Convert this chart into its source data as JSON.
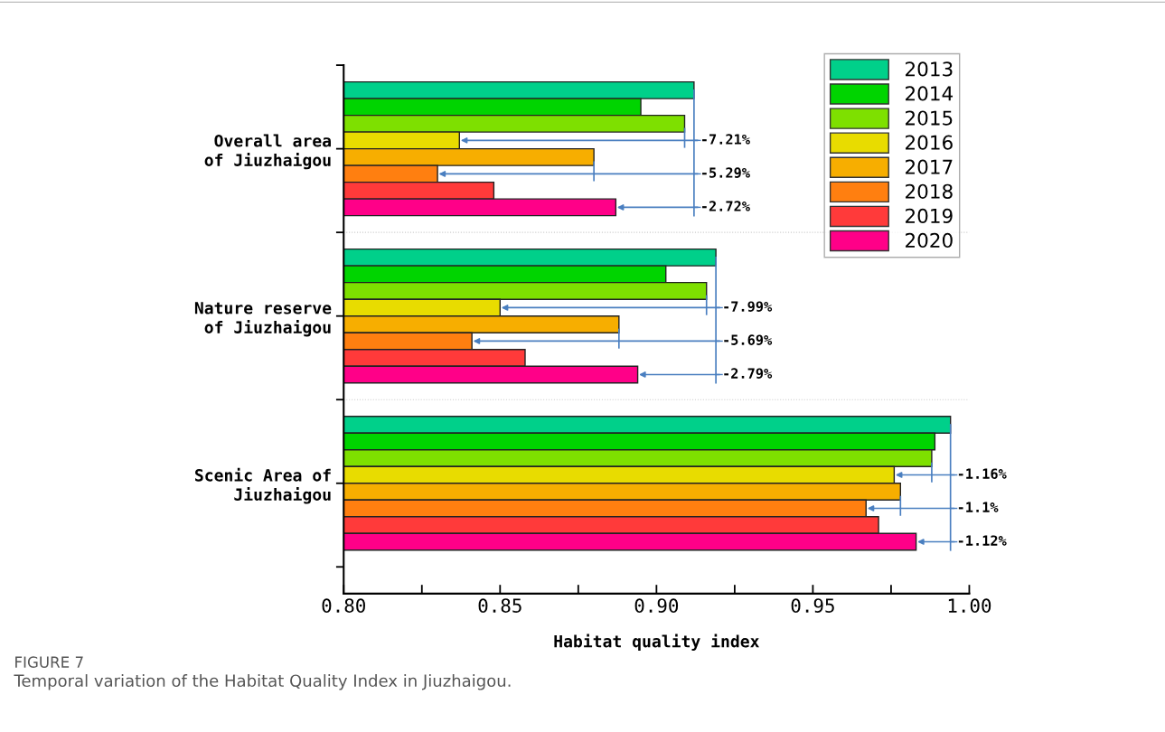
{
  "chart_data": {
    "type": "bar",
    "orientation": "horizontal",
    "categories": [
      "Overall area\nof Jiuzhaigou",
      "Nature reserve\nof Jiuzhaigou",
      "Scenic Area of\nJiuzhaigou"
    ],
    "xlabel": "Habitat quality index",
    "xlim": [
      0.8,
      1.0
    ],
    "xticks": [
      {
        "value": 0.8,
        "label": "0.80"
      },
      {
        "value": 0.85,
        "label": "0.85"
      },
      {
        "value": 0.9,
        "label": "0.90"
      },
      {
        "value": 0.95,
        "label": "0.95"
      },
      {
        "value": 1.0,
        "label": "1.00"
      }
    ],
    "series": [
      {
        "name": "2013",
        "color": "#00d08a",
        "values": [
          0.912,
          0.919,
          0.994
        ]
      },
      {
        "name": "2014",
        "color": "#00d400",
        "values": [
          0.895,
          0.903,
          0.989
        ]
      },
      {
        "name": "2015",
        "color": "#7ee000",
        "values": [
          0.909,
          0.916,
          0.988
        ]
      },
      {
        "name": "2016",
        "color": "#e8dc00",
        "values": [
          0.837,
          0.85,
          0.976
        ]
      },
      {
        "name": "2017",
        "color": "#f7ae00",
        "values": [
          0.88,
          0.888,
          0.978
        ]
      },
      {
        "name": "2018",
        "color": "#ff7f10",
        "values": [
          0.83,
          0.841,
          0.967
        ]
      },
      {
        "name": "2019",
        "color": "#ff3a3a",
        "values": [
          0.848,
          0.858,
          0.971
        ]
      },
      {
        "name": "2020",
        "color": "#ff0088",
        "values": [
          0.887,
          0.894,
          0.983
        ]
      }
    ],
    "legend": "top right",
    "annotations": [
      {
        "text": "-7.21%",
        "x": 0.837
      },
      {
        "text": "-5.29%",
        "x": 0.83
      },
      {
        "text": "-2.72%",
        "x": 0.887
      },
      {
        "text": "-7.99%",
        "x": 0.85
      },
      {
        "text": "-5.69%",
        "x": 0.841
      },
      {
        "text": "-2.79%",
        "x": 0.894
      },
      {
        "text": "-1.16%",
        "x": 0.976
      },
      {
        "text": "-1.1%",
        "x": 0.967
      },
      {
        "text": "-1.12%",
        "x": 0.983
      },
      "FIGURE 7",
      "Temporal variation of the Habitat Quality Index in Jiuzhaigou."
    ]
  }
}
